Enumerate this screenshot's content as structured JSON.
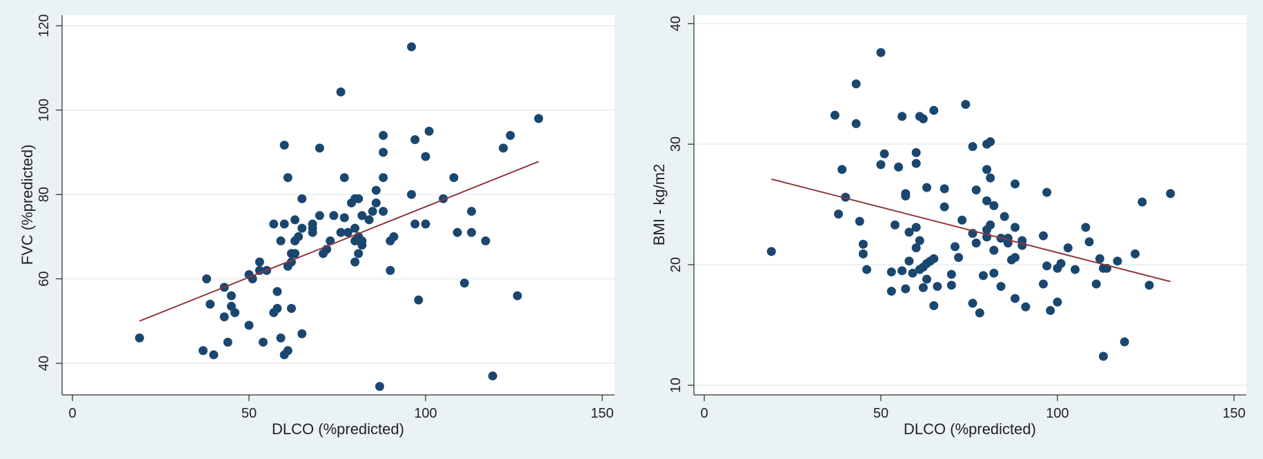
{
  "colors": {
    "background": "#eaf2f3",
    "plot_region": "#ffffff",
    "gridline": "#e4eded",
    "marker": "#1a476f",
    "fit_line": "#90353b"
  },
  "chart_data": [
    {
      "type": "scatter",
      "title": "",
      "xlabel": "DLCO (%predicted)",
      "ylabel": "FVC (%predicted)",
      "xlim": [
        0,
        150
      ],
      "ylim": [
        32.5,
        122.5
      ],
      "xticks": [
        0,
        50,
        100,
        150
      ],
      "yticks": [
        40,
        60,
        80,
        100,
        120
      ],
      "grid": true,
      "legend": "none",
      "fit_line": {
        "x": [
          19,
          132
        ],
        "y": [
          50,
          87.8
        ]
      },
      "points": [
        [
          19,
          46
        ],
        [
          37,
          43
        ],
        [
          38,
          60
        ],
        [
          39,
          54
        ],
        [
          40,
          42
        ],
        [
          43,
          58
        ],
        [
          43,
          51
        ],
        [
          44,
          45
        ],
        [
          45,
          56
        ],
        [
          45,
          53.5
        ],
        [
          46,
          52
        ],
        [
          50,
          49
        ],
        [
          50,
          61
        ],
        [
          51,
          60
        ],
        [
          53,
          64
        ],
        [
          53,
          62
        ],
        [
          54,
          45
        ],
        [
          55,
          62
        ],
        [
          57,
          52
        ],
        [
          57,
          73
        ],
        [
          58,
          57
        ],
        [
          58,
          53
        ],
        [
          59,
          46
        ],
        [
          59,
          69
        ],
        [
          60,
          42
        ],
        [
          60,
          73
        ],
        [
          60,
          91.7
        ],
        [
          61,
          84
        ],
        [
          61,
          63
        ],
        [
          61,
          43
        ],
        [
          62,
          64
        ],
        [
          62,
          66
        ],
        [
          62,
          53
        ],
        [
          63,
          69
        ],
        [
          63,
          74
        ],
        [
          63,
          66
        ],
        [
          64,
          70
        ],
        [
          65,
          72
        ],
        [
          65,
          79
        ],
        [
          65,
          47
        ],
        [
          68,
          71
        ],
        [
          68,
          72
        ],
        [
          68,
          73
        ],
        [
          70,
          75
        ],
        [
          70,
          91
        ],
        [
          71,
          66
        ],
        [
          72,
          67
        ],
        [
          73,
          69
        ],
        [
          74,
          75
        ],
        [
          76,
          104.3
        ],
        [
          76,
          71
        ],
        [
          77,
          74.5
        ],
        [
          77,
          84
        ],
        [
          78,
          71
        ],
        [
          79,
          78
        ],
        [
          80,
          79
        ],
        [
          80,
          72
        ],
        [
          80,
          69
        ],
        [
          80,
          64
        ],
        [
          81,
          66
        ],
        [
          81,
          70
        ],
        [
          81,
          79
        ],
        [
          82,
          68
        ],
        [
          82,
          69
        ],
        [
          82,
          75
        ],
        [
          84,
          74
        ],
        [
          85,
          76
        ],
        [
          86,
          81
        ],
        [
          86,
          78
        ],
        [
          87,
          34.5
        ],
        [
          88,
          76
        ],
        [
          88,
          84
        ],
        [
          88,
          90
        ],
        [
          88,
          94
        ],
        [
          90,
          69
        ],
        [
          90,
          62
        ],
        [
          91,
          70
        ],
        [
          96,
          80
        ],
        [
          96,
          115
        ],
        [
          97,
          93
        ],
        [
          97,
          73
        ],
        [
          98,
          55
        ],
        [
          100,
          73
        ],
        [
          100,
          89
        ],
        [
          101,
          95
        ],
        [
          105,
          79
        ],
        [
          108,
          84
        ],
        [
          109,
          71
        ],
        [
          111,
          59
        ],
        [
          113,
          76
        ],
        [
          113,
          71
        ],
        [
          117,
          69
        ],
        [
          119,
          37
        ],
        [
          122,
          91
        ],
        [
          124,
          94
        ],
        [
          126,
          56
        ],
        [
          132,
          98
        ]
      ]
    },
    {
      "type": "scatter",
      "title": "",
      "xlabel": "DLCO (%predicted)",
      "ylabel": "BMI - kg/m2",
      "xlim": [
        0,
        150
      ],
      "ylim": [
        9.2,
        40.7
      ],
      "xticks": [
        0,
        50,
        100,
        150
      ],
      "yticks": [
        10,
        20,
        30,
        40
      ],
      "grid": true,
      "legend": "none",
      "fit_line": {
        "x": [
          19,
          132
        ],
        "y": [
          27.1,
          18.6
        ]
      },
      "points": [
        [
          19,
          21.1
        ],
        [
          37,
          32.4
        ],
        [
          38,
          24.2
        ],
        [
          39,
          27.9
        ],
        [
          40,
          25.6
        ],
        [
          43,
          35
        ],
        [
          43,
          31.7
        ],
        [
          44,
          23.6
        ],
        [
          45,
          21.7
        ],
        [
          45,
          20.9
        ],
        [
          46,
          19.6
        ],
        [
          50,
          37.6
        ],
        [
          50,
          28.3
        ],
        [
          51,
          29.2
        ],
        [
          53,
          19.4
        ],
        [
          53,
          17.8
        ],
        [
          54,
          23.3
        ],
        [
          55,
          28.1
        ],
        [
          56,
          32.3
        ],
        [
          56,
          19.5
        ],
        [
          57,
          25.9
        ],
        [
          57,
          25.7
        ],
        [
          57,
          18
        ],
        [
          58,
          22.7
        ],
        [
          58,
          20.3
        ],
        [
          59,
          19.3
        ],
        [
          60,
          29.3
        ],
        [
          60,
          28.4
        ],
        [
          60,
          23.1
        ],
        [
          60,
          21.4
        ],
        [
          61,
          32.3
        ],
        [
          61,
          22
        ],
        [
          61,
          19.6
        ],
        [
          62,
          32.1
        ],
        [
          62,
          19.8
        ],
        [
          62,
          18.1
        ],
        [
          63,
          26.4
        ],
        [
          63,
          20.1
        ],
        [
          63,
          18.8
        ],
        [
          64,
          20.3
        ],
        [
          65,
          32.8
        ],
        [
          65,
          20.5
        ],
        [
          65,
          16.6
        ],
        [
          66,
          18.2
        ],
        [
          68,
          26.3
        ],
        [
          68,
          24.8
        ],
        [
          70,
          19.2
        ],
        [
          70,
          18.3
        ],
        [
          71,
          21.5
        ],
        [
          72,
          20.6
        ],
        [
          73,
          23.7
        ],
        [
          74,
          33.3
        ],
        [
          76,
          29.8
        ],
        [
          76,
          22.6
        ],
        [
          76,
          16.8
        ],
        [
          77,
          26.2
        ],
        [
          77,
          21.8
        ],
        [
          78,
          16
        ],
        [
          79,
          19.1
        ],
        [
          80,
          30
        ],
        [
          80,
          27.9
        ],
        [
          80,
          25.3
        ],
        [
          80,
          22.9
        ],
        [
          80,
          22.3
        ],
        [
          81,
          30.2
        ],
        [
          81,
          27.2
        ],
        [
          81,
          23.3
        ],
        [
          82,
          24.9
        ],
        [
          82,
          21.2
        ],
        [
          82,
          19.3
        ],
        [
          84,
          22.2
        ],
        [
          84,
          18.2
        ],
        [
          85,
          24
        ],
        [
          86,
          22.2
        ],
        [
          86,
          21.8
        ],
        [
          87,
          20.4
        ],
        [
          88,
          26.7
        ],
        [
          88,
          23.1
        ],
        [
          88,
          20.6
        ],
        [
          88,
          17.2
        ],
        [
          90,
          22
        ],
        [
          90,
          21.6
        ],
        [
          91,
          16.5
        ],
        [
          96,
          22.4
        ],
        [
          96,
          18.4
        ],
        [
          97,
          26
        ],
        [
          97,
          19.9
        ],
        [
          98,
          16.2
        ],
        [
          100,
          19.7
        ],
        [
          100,
          16.9
        ],
        [
          101,
          20.1
        ],
        [
          103,
          21.4
        ],
        [
          105,
          19.6
        ],
        [
          108,
          23.1
        ],
        [
          109,
          21.9
        ],
        [
          111,
          18.4
        ],
        [
          112,
          20.5
        ],
        [
          113,
          12.4
        ],
        [
          113,
          19.7
        ],
        [
          114,
          19.7
        ],
        [
          117,
          20.3
        ],
        [
          119,
          13.6
        ],
        [
          122,
          20.9
        ],
        [
          124,
          25.2
        ],
        [
          126,
          18.3
        ],
        [
          132,
          25.9
        ]
      ]
    }
  ]
}
